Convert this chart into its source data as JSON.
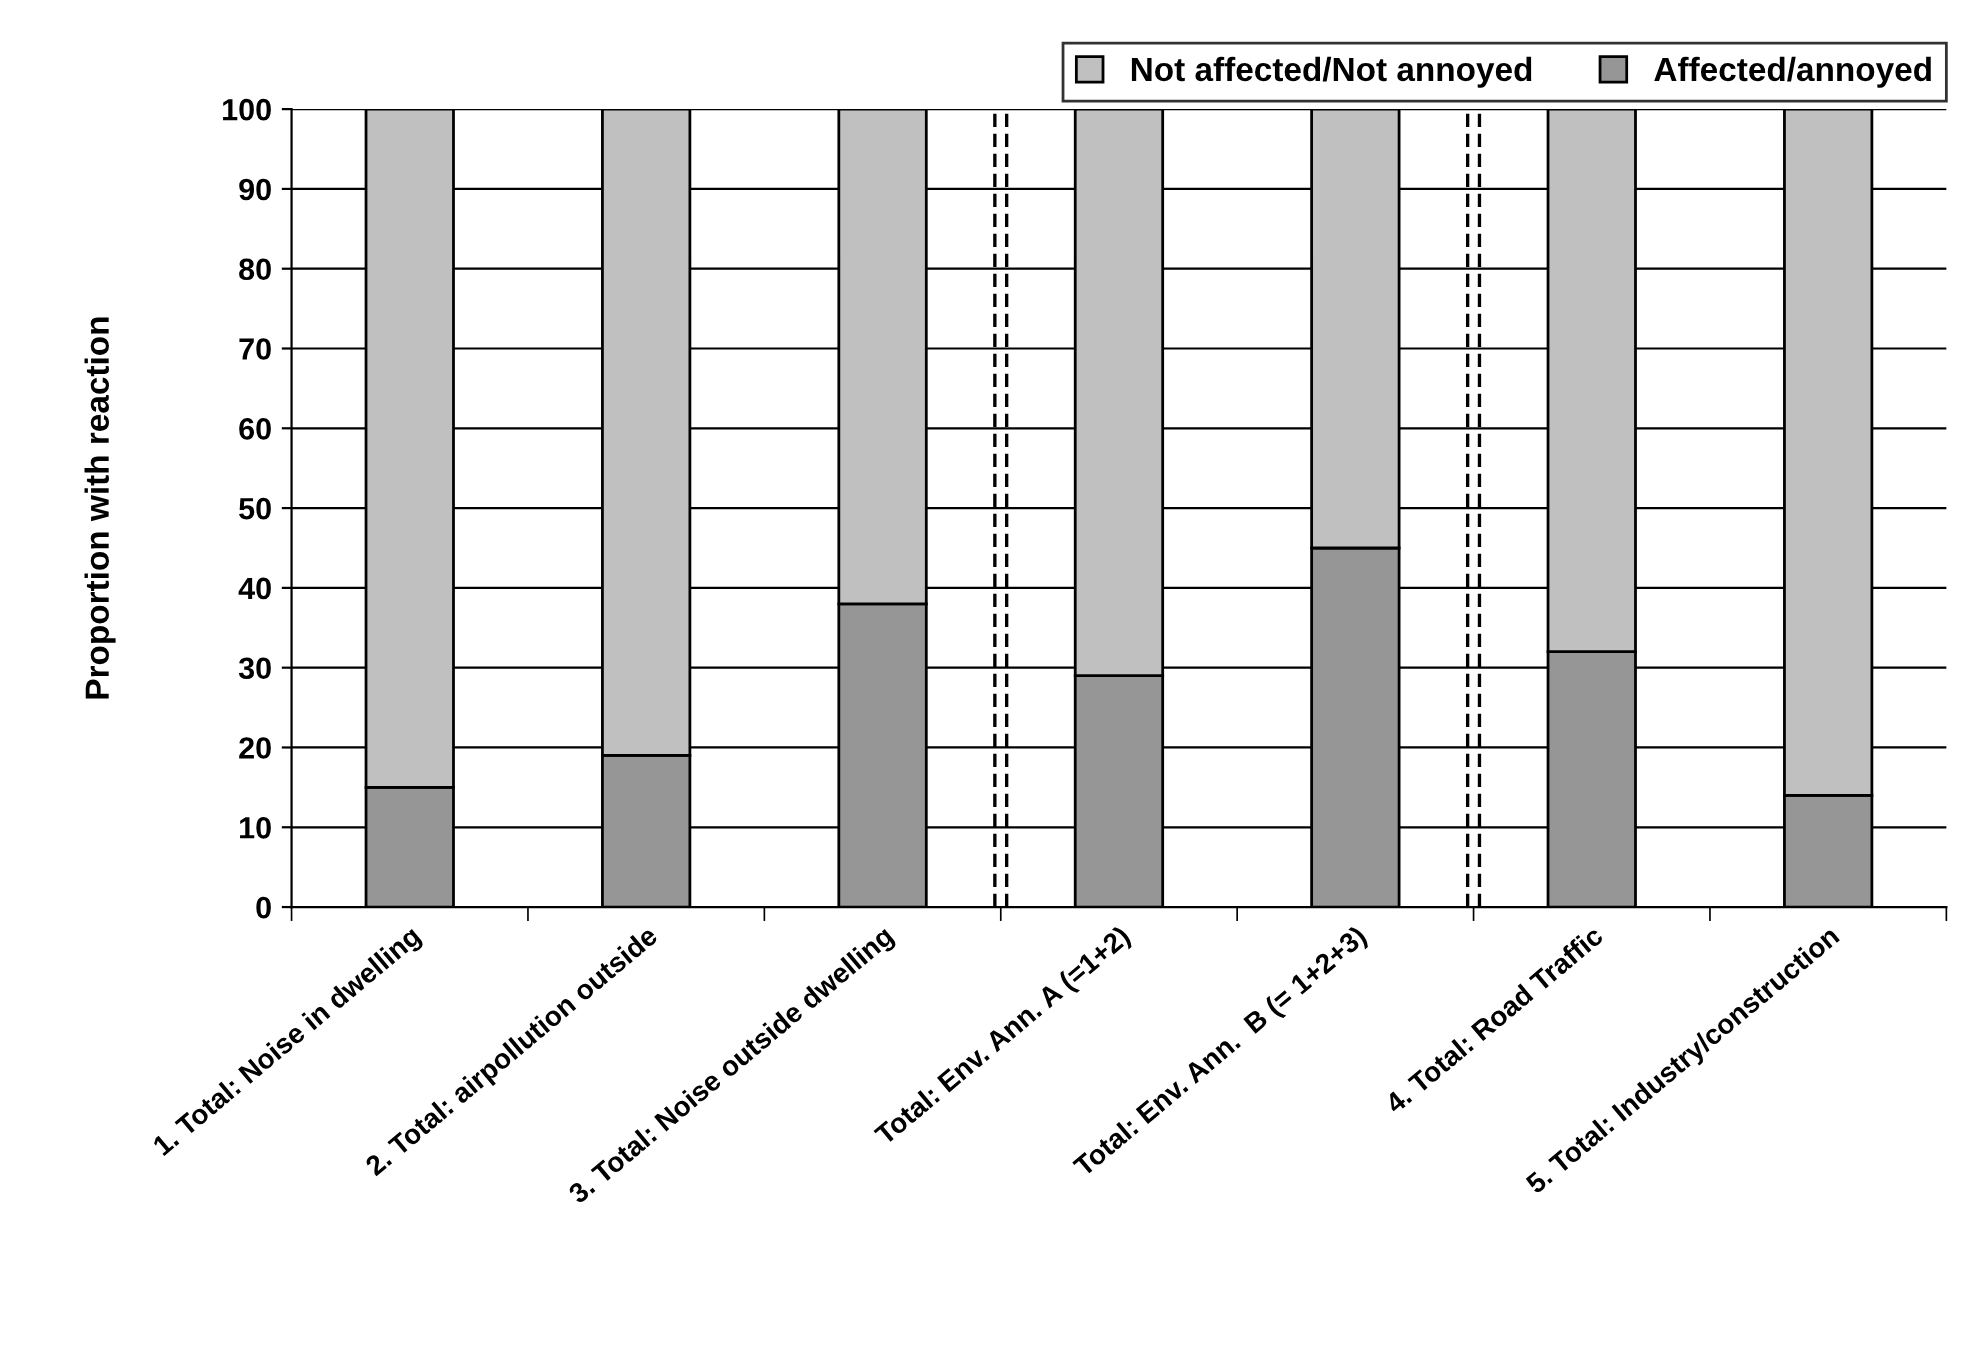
{
  "chart_data": {
    "type": "bar",
    "stacked": true,
    "ylabel": "Proportion with reaction",
    "categories": [
      "1. Total: Noise in dwelling",
      "2. Total: airpollution outside",
      "3. Total: Noise outside dwelling",
      "Total: Env. Ann. A (=1+2)",
      "Total: Env. Ann.  B (= 1+2+3)",
      "4. Total: Road Traffic",
      "5. Total: Industry/construction"
    ],
    "series": [
      {
        "name": "Affected/annoyed",
        "color": "#969696",
        "values": [
          15,
          19,
          38,
          29,
          45,
          32,
          14
        ]
      },
      {
        "name": "Not affected/Not annoyed",
        "color": "#c0c0c0",
        "values": [
          85,
          81,
          62,
          71,
          55,
          68,
          86
        ]
      }
    ],
    "ylim": [
      0,
      100
    ],
    "yticks": [
      0,
      10,
      20,
      30,
      40,
      50,
      60,
      70,
      80,
      90,
      100
    ],
    "grid": "y",
    "legend": "top right"
  }
}
